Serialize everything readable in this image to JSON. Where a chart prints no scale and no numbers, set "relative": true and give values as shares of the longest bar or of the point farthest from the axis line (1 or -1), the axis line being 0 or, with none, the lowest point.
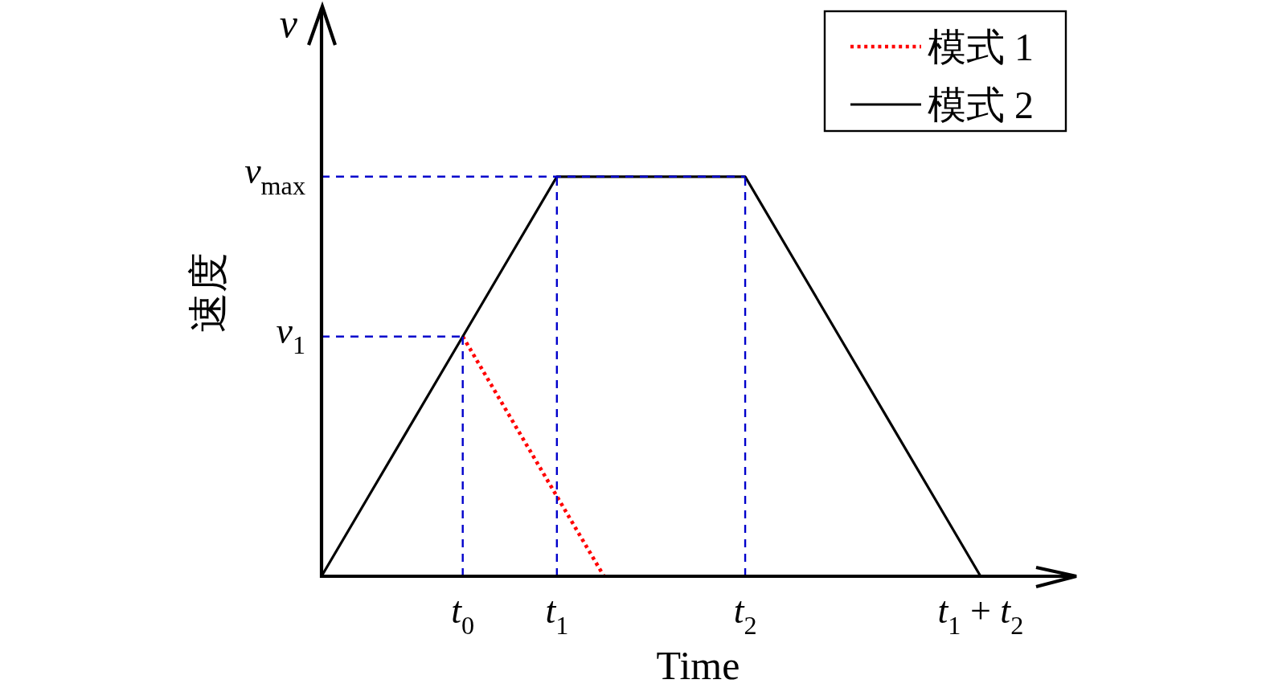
{
  "chart_data": {
    "type": "line",
    "xlabel": "Time",
    "ylabel": "速度",
    "annotations": [
      "v"
    ],
    "relative": true,
    "categories": [
      null,
      null,
      null,
      "t$_{0}$",
      null,
      "t$_{1}$",
      null,
      null,
      null,
      "t$_{2}$",
      null,
      null,
      null,
      null,
      "t$_{1}$ + t$_{2}$",
      null,
      null
    ],
    "series": [
      {
        "name": "模式 1",
        "color": "#ff0000",
        "line_style": "dotted",
        "values": [
          null,
          null,
          null,
          0.6,
          0.4,
          0.2,
          0,
          null,
          null,
          null,
          null,
          null,
          null,
          null,
          null,
          null,
          null
        ]
      },
      {
        "name": "模式 2",
        "color": "#000000",
        "line_style": "solid",
        "values": [
          0,
          0.2,
          0.4,
          0.6,
          0.8,
          1,
          1,
          1,
          1,
          1,
          0.8,
          0.6,
          0.4,
          0.2,
          0,
          null,
          null
        ]
      }
    ],
    "ref_lines": [
      {
        "axis": "y",
        "value": 0.6,
        "label": "v$_{1}$",
        "color": "#0000cc",
        "line_style": "dashed"
      },
      {
        "axis": "y",
        "value": 1,
        "label": "v$_{max}$",
        "color": "#0000cc",
        "line_style": "dashed"
      },
      {
        "axis": "x",
        "value": "t$_{0}$",
        "color": "#0000cc",
        "line_style": "dashed"
      },
      {
        "axis": "x",
        "value": "t$_{1}$",
        "color": "#0000cc",
        "line_style": "dashed"
      },
      {
        "axis": "x",
        "value": "t$_{2}$",
        "color": "#0000cc",
        "line_style": "dashed"
      }
    ],
    "legend": "top right"
  }
}
